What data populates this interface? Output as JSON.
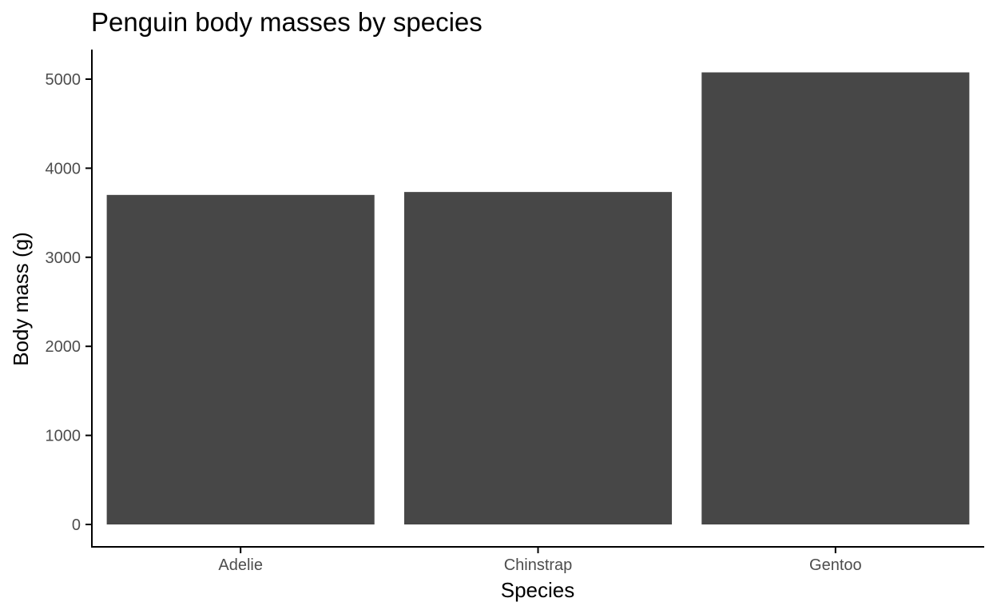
{
  "chart_data": {
    "type": "bar",
    "title": "Penguin body masses by species",
    "xlabel": "Species",
    "ylabel": "Body mass (g)",
    "categories": [
      "Adelie",
      "Chinstrap",
      "Gentoo"
    ],
    "values": [
      3700,
      3733,
      5076
    ],
    "ylim": [
      0,
      5300
    ],
    "yticks": [
      0,
      1000,
      2000,
      3000,
      4000,
      5000
    ],
    "grid": false,
    "legend": "none",
    "bar_color": "#474747",
    "axis_color": "#000000",
    "tick_label_color": "#4d4d4d"
  }
}
